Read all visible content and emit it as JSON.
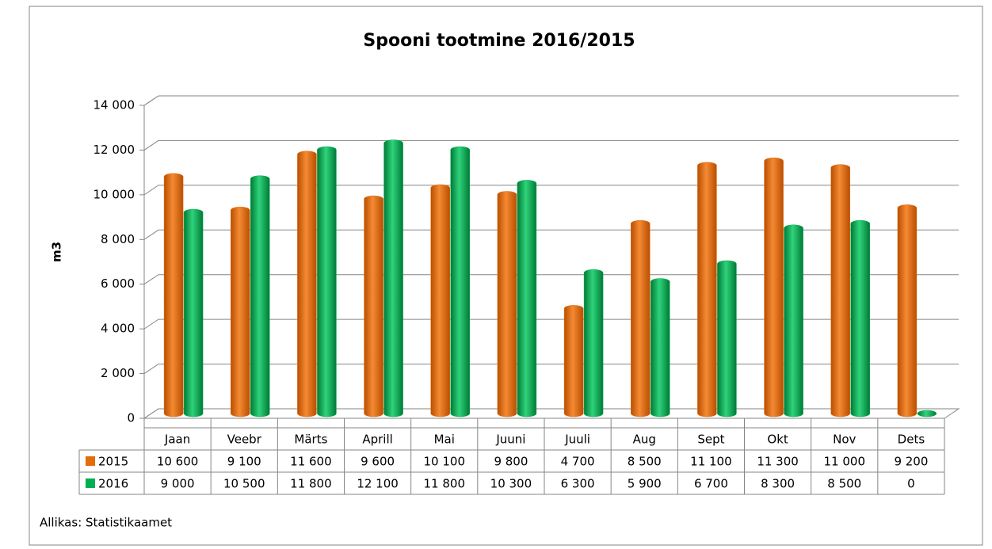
{
  "chart_data": {
    "type": "bar",
    "title": "Spooni tootmine 2016/2015",
    "y_label": "m3",
    "source": "Allikas: Statistikaamet",
    "categories": [
      "Jaan",
      "Veebr",
      "Märts",
      "Aprill",
      "Mai",
      "Juuni",
      "Juuli",
      "Aug",
      "Sept",
      "Okt",
      "Nov",
      "Dets"
    ],
    "series": [
      {
        "name": "2015",
        "color": "#e46c0a",
        "values": [
          10600,
          9100,
          11600,
          9600,
          10100,
          9800,
          4700,
          8500,
          11100,
          11300,
          11000,
          9200
        ],
        "value_labels": [
          "10 600",
          "9 100",
          "11 600",
          "9 600",
          "10 100",
          "9 800",
          "4 700",
          "8 500",
          "11 100",
          "11 300",
          "11 000",
          "9 200"
        ]
      },
      {
        "name": "2016",
        "color": "#00b050",
        "values": [
          9000,
          10500,
          11800,
          12100,
          11800,
          10300,
          6300,
          5900,
          6700,
          8300,
          8500,
          0
        ],
        "value_labels": [
          "9 000",
          "10 500",
          "11 800",
          "12 100",
          "11 800",
          "10 300",
          "6 300",
          "5 900",
          "6 700",
          "8 300",
          "8 500",
          "0"
        ]
      }
    ],
    "ylim": [
      0,
      14000
    ],
    "yticks": [
      0,
      {
        "value": 2000,
        "label": "2 000"
      },
      {
        "value": 4000,
        "label": "4 000"
      },
      {
        "value": 6000,
        "label": "6 000"
      },
      {
        "value": 8000,
        "label": "8 000"
      },
      {
        "value": 10000,
        "label": "10 000"
      },
      {
        "value": 12000,
        "label": "12 000"
      },
      {
        "value": 14000,
        "label": "14 000"
      }
    ],
    "grid": true
  }
}
